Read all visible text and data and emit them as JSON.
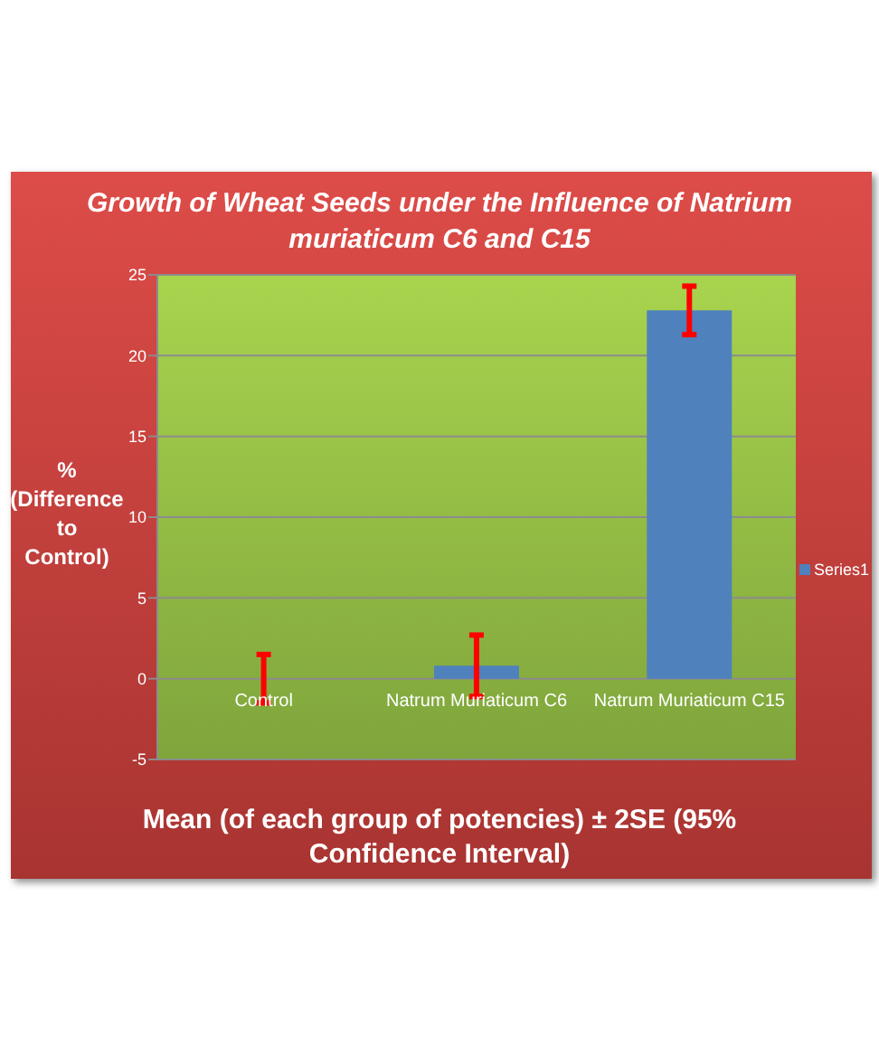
{
  "chart_data": {
    "type": "bar",
    "title": "Growth of Wheat Seeds under the Influence of Natrium muriaticum C6 and C15",
    "xlabel": "Mean (of each group of potencies) ± 2SE (95% Confidence Interval)",
    "ylabel": "% (Difference to Control)",
    "categories": [
      "Control",
      "Natrum Muriaticum C6",
      "Natrum Muriaticum C15"
    ],
    "series": [
      {
        "name": "Series1",
        "color": "#4f81bd",
        "values": [
          0,
          0.8,
          22.8
        ],
        "errors": [
          1.5,
          1.9,
          1.5
        ]
      }
    ],
    "ylim": [
      -5,
      25
    ],
    "yticks": [
      -5,
      0,
      5,
      10,
      15,
      20,
      25
    ],
    "grid": "y",
    "legend": "right"
  }
}
